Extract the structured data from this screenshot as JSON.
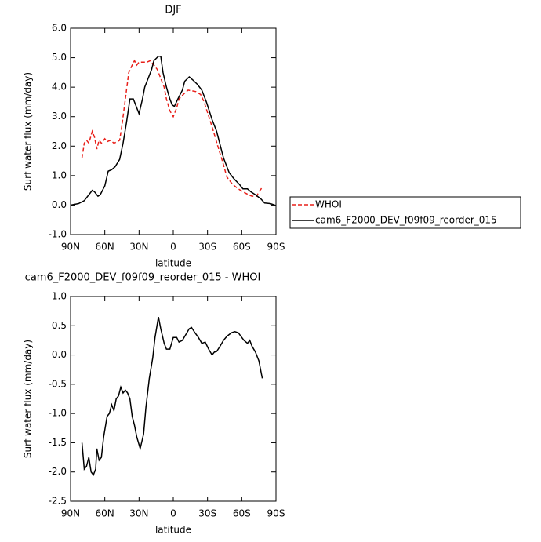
{
  "chart_data": [
    {
      "type": "line",
      "title": "DJF",
      "x_label": "latitude",
      "y_label": "Surf water flux (mm/day)",
      "xlim": [
        90,
        -90
      ],
      "ylim": [
        -1,
        6
      ],
      "xticks": [
        {
          "value": 90,
          "label": "90N"
        },
        {
          "value": 60,
          "label": "60N"
        },
        {
          "value": 30,
          "label": "30N"
        },
        {
          "value": 0,
          "label": "0"
        },
        {
          "value": -30,
          "label": "30S"
        },
        {
          "value": -60,
          "label": "60S"
        },
        {
          "value": -90,
          "label": "90S"
        }
      ],
      "yticks": [
        {
          "value": 6,
          "label": "6.0"
        },
        {
          "value": 5,
          "label": "5.0"
        },
        {
          "value": 4,
          "label": "4.0"
        },
        {
          "value": 3,
          "label": "3.0"
        },
        {
          "value": 2,
          "label": "2.0"
        },
        {
          "value": 1,
          "label": "1.0"
        },
        {
          "value": 0,
          "label": "0.0"
        },
        {
          "value": -1,
          "label": "-1.0"
        }
      ],
      "legend": "right",
      "series": [
        {
          "name": "WHOI",
          "color": "#e8201a",
          "linestyle": "dashed",
          "x": [
            80,
            78,
            76,
            74,
            71,
            69,
            67,
            65,
            63,
            60,
            58,
            55,
            52,
            49,
            47,
            45,
            42,
            39,
            36,
            34,
            32,
            30,
            26,
            23,
            20,
            17,
            14,
            11,
            8,
            6,
            3,
            0,
            -3,
            -5,
            -10,
            -13,
            -20,
            -24,
            -27,
            -32,
            -36,
            -39,
            -43,
            -47,
            -52,
            -57,
            -61,
            -66,
            -69,
            -73,
            -75,
            -78
          ],
          "values": [
            1.6,
            2.1,
            2.2,
            2.1,
            2.5,
            2.3,
            1.9,
            2.2,
            2.1,
            2.25,
            2.15,
            2.2,
            2.1,
            2.15,
            2.2,
            2.7,
            3.6,
            4.5,
            4.75,
            4.9,
            4.75,
            4.85,
            4.85,
            4.85,
            4.9,
            4.75,
            4.6,
            4.3,
            4.0,
            3.6,
            3.2,
            3.0,
            3.3,
            3.6,
            3.8,
            3.9,
            3.85,
            3.75,
            3.5,
            2.9,
            2.4,
            2.0,
            1.5,
            0.95,
            0.7,
            0.55,
            0.45,
            0.35,
            0.3,
            0.3,
            0.45,
            0.6
          ]
        },
        {
          "name": "cam6_F2000_DEV_f09f09_reorder_015",
          "color": "#000000",
          "linestyle": "solid",
          "x": [
            90,
            83,
            78,
            74,
            71,
            69,
            66,
            64,
            60,
            57,
            54,
            51,
            47,
            44,
            41,
            38,
            35,
            32,
            30,
            27,
            25,
            22,
            19,
            17,
            13,
            11,
            9,
            6,
            3,
            1,
            -1,
            -4,
            -8,
            -10,
            -14,
            -17,
            -21,
            -25,
            -29,
            -34,
            -38,
            -40,
            -44,
            -49,
            -53,
            -58,
            -61,
            -65,
            -68,
            -72,
            -77,
            -80,
            -85,
            -89
          ],
          "values": [
            0.0,
            0.05,
            0.15,
            0.35,
            0.5,
            0.45,
            0.3,
            0.35,
            0.65,
            1.15,
            1.2,
            1.3,
            1.55,
            2.1,
            2.8,
            3.6,
            3.6,
            3.3,
            3.1,
            3.6,
            4.0,
            4.3,
            4.6,
            4.9,
            5.05,
            5.05,
            4.5,
            4.0,
            3.6,
            3.4,
            3.35,
            3.6,
            3.9,
            4.2,
            4.35,
            4.25,
            4.1,
            3.9,
            3.5,
            2.9,
            2.5,
            2.2,
            1.6,
            1.1,
            0.9,
            0.7,
            0.55,
            0.55,
            0.45,
            0.35,
            0.2,
            0.07,
            0.05,
            0.0
          ]
        }
      ]
    },
    {
      "type": "line",
      "title": "cam6_F2000_DEV_f09f09_reorder_015 - WHOI",
      "x_label": "latitude",
      "y_label": "Surf water flux (mm/day)",
      "xlim": [
        90,
        -90
      ],
      "ylim": [
        -2.5,
        1
      ],
      "xticks": [
        {
          "value": 90,
          "label": "90N"
        },
        {
          "value": 60,
          "label": "60N"
        },
        {
          "value": 30,
          "label": "30N"
        },
        {
          "value": 0,
          "label": "0"
        },
        {
          "value": -30,
          "label": "30S"
        },
        {
          "value": -60,
          "label": "60S"
        },
        {
          "value": -90,
          "label": "90S"
        }
      ],
      "yticks": [
        {
          "value": 1,
          "label": "1.0"
        },
        0.5,
        {
          "value": 0,
          "label": "0.0"
        },
        -0.5,
        {
          "value": -1,
          "label": "-1.0"
        },
        -1.5,
        {
          "value": -2,
          "label": "-2.0"
        },
        -2.5
      ],
      "series": [
        {
          "color": "#000000",
          "linestyle": "solid",
          "x": [
            80,
            78,
            76,
            74,
            72,
            70,
            68,
            67,
            65,
            63,
            61,
            58,
            56,
            54,
            52,
            50,
            48,
            46,
            44,
            42,
            40,
            38,
            36,
            34,
            32,
            29,
            26,
            24,
            21,
            18,
            16,
            13,
            11,
            8,
            6,
            3,
            0,
            -3,
            -5,
            -8,
            -11,
            -14,
            -16,
            -19,
            -22,
            -25,
            -28,
            -31,
            -34,
            -36,
            -38,
            -41,
            -44,
            -47,
            -51,
            -54,
            -57,
            -60,
            -62,
            -65,
            -67,
            -69,
            -72,
            -75,
            -78
          ],
          "values": [
            -1.5,
            -1.95,
            -1.9,
            -1.75,
            -2.0,
            -2.05,
            -1.95,
            -1.6,
            -1.8,
            -1.75,
            -1.4,
            -1.05,
            -1.0,
            -0.85,
            -0.95,
            -0.75,
            -0.7,
            -0.55,
            -0.65,
            -0.6,
            -0.65,
            -0.75,
            -1.05,
            -1.2,
            -1.4,
            -1.6,
            -1.35,
            -0.9,
            -0.4,
            -0.05,
            0.3,
            0.65,
            0.45,
            0.2,
            0.1,
            0.1,
            0.3,
            0.3,
            0.22,
            0.25,
            0.35,
            0.45,
            0.47,
            0.38,
            0.3,
            0.2,
            0.22,
            0.1,
            0.0,
            0.05,
            0.06,
            0.15,
            0.25,
            0.32,
            0.38,
            0.4,
            0.38,
            0.3,
            0.25,
            0.2,
            0.25,
            0.15,
            0.05,
            -0.1,
            -0.4
          ]
        }
      ]
    }
  ]
}
